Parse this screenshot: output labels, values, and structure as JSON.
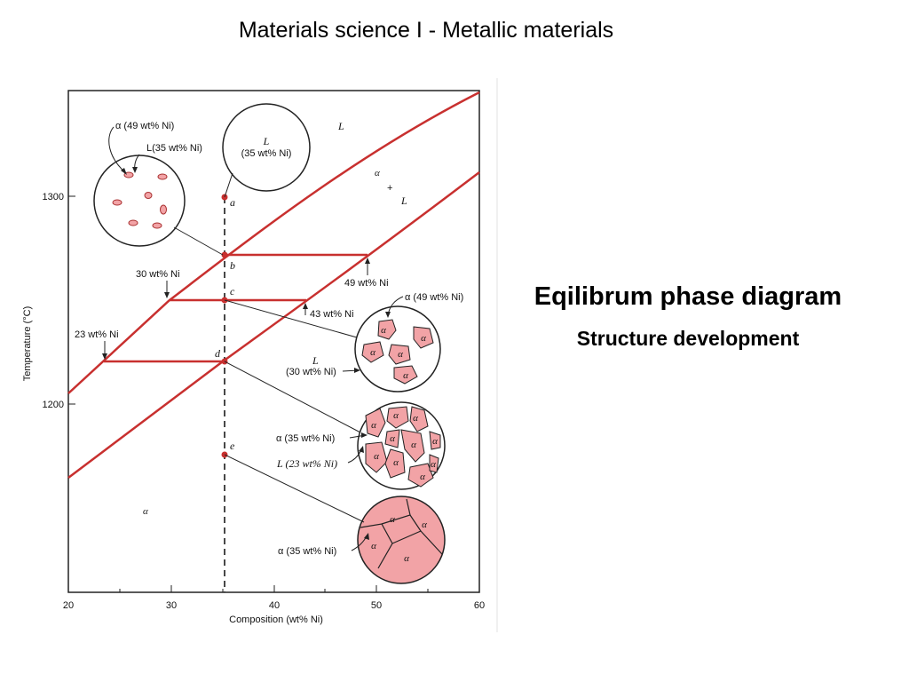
{
  "slide": {
    "title": "Materials science I - Metallic materials",
    "side_title": "Eqilibrum phase diagram",
    "side_subtitle": "Structure development"
  },
  "axes": {
    "xlabel": "Composition (wt% Ni)",
    "ylabel": "Temperature (°C)",
    "xticks": [
      "20",
      "30",
      "40",
      "50",
      "60"
    ],
    "yticks": [
      "1300",
      "1200"
    ]
  },
  "regions": {
    "liquid": "L",
    "two_phase_alpha": "α",
    "two_phase_plus": "+",
    "two_phase_L": "L",
    "solid": "α"
  },
  "points": [
    "a",
    "b",
    "c",
    "d",
    "e"
  ],
  "labels": {
    "alpha_49": "α (49 wt% Ni)",
    "L_35_top": "L(35 wt% Ni)",
    "circle_a_L": "L",
    "circle_a_comp": "(35 wt% Ni)",
    "wt30": "30 wt% Ni",
    "wt49": "49 wt% Ni",
    "wt43": "43 wt% Ni",
    "wt23": "23 wt% Ni",
    "alpha_49_c": "α (49 wt% Ni)",
    "L_c": "L",
    "L_c_comp": "(30 wt% Ni)",
    "alpha_35_d": "α (35 wt% Ni)",
    "L_23_d": "L (23 wt% Ni)",
    "alpha_35_e": "α (35 wt% Ni)",
    "grain": "α"
  },
  "colors": {
    "line": "#c8302f",
    "particle_fill": "#f2a3a6",
    "solid_fill": "#f2a3a6"
  }
}
